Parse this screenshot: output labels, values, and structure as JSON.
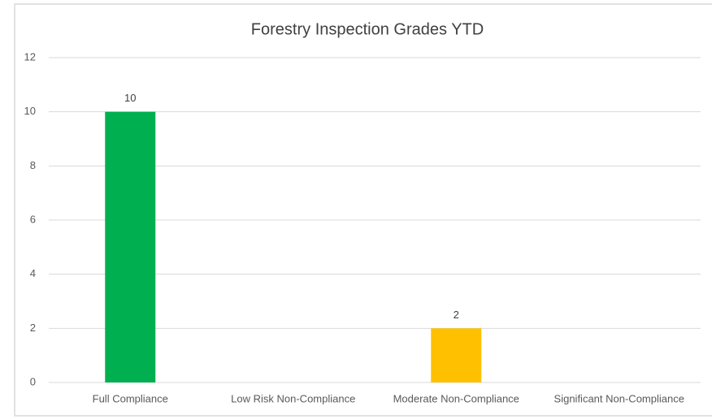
{
  "chart_data": {
    "type": "bar",
    "title": "Forestry Inspection Grades YTD",
    "categories": [
      "Full Compliance",
      "Low Risk Non-Compliance",
      "Moderate Non-Compliance",
      "Significant Non-Compliance"
    ],
    "values": [
      10,
      null,
      2,
      null
    ],
    "colors": [
      "#00b050",
      null,
      "#ffc000",
      null
    ],
    "ylim": [
      0,
      12
    ],
    "yticks": [
      0,
      2,
      4,
      6,
      8,
      10,
      12
    ],
    "grid": true
  }
}
